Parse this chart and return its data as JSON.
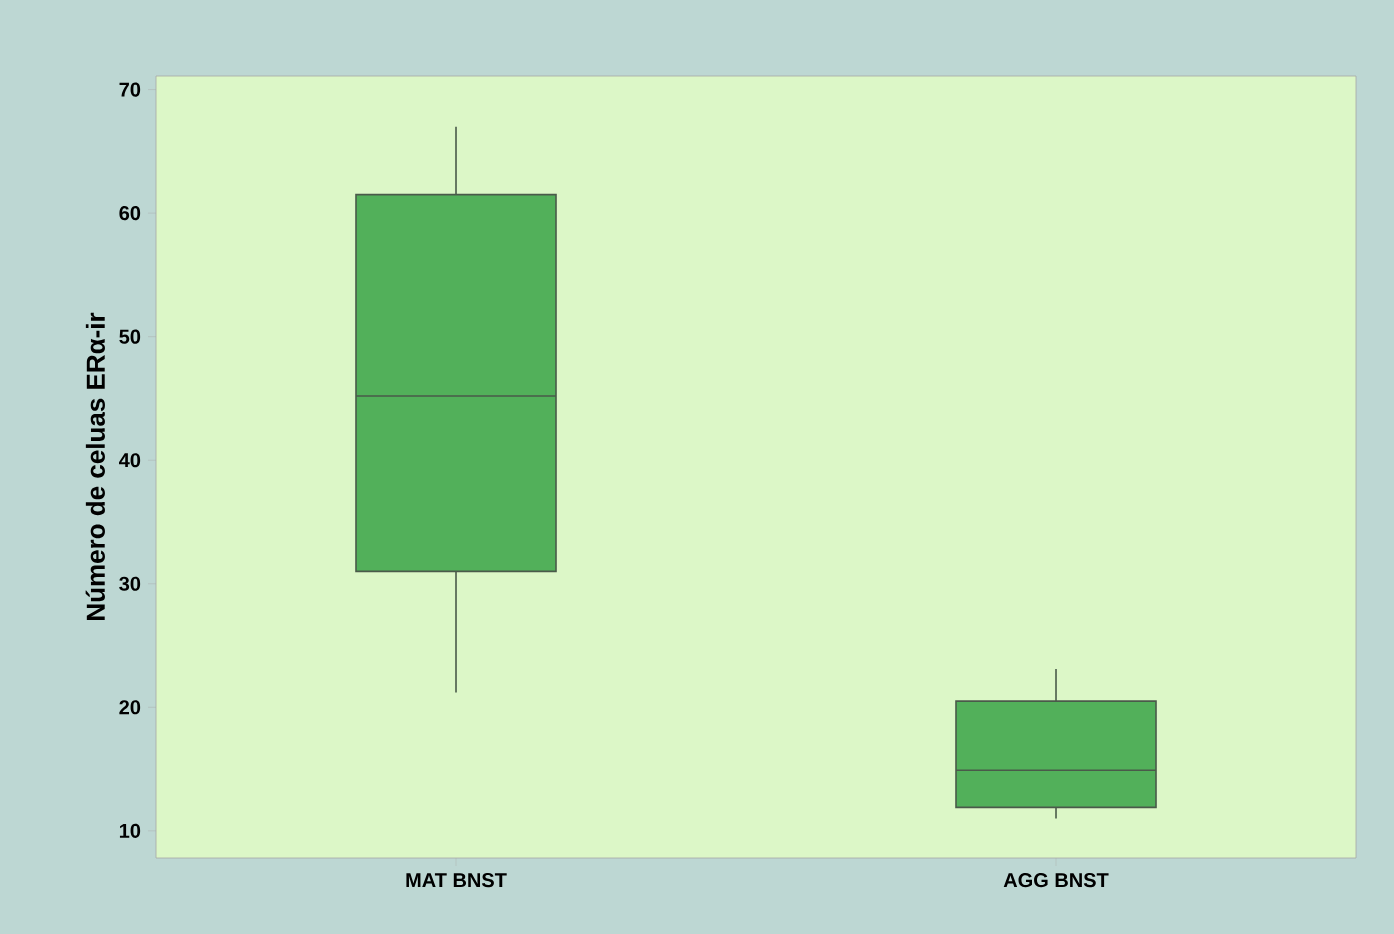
{
  "chart_data": {
    "type": "box",
    "ylabel": "Número de celuas ERα-ir",
    "categories": [
      "MAT BNST",
      "AGG BNST"
    ],
    "boxes": [
      {
        "low": 21.2,
        "q1": 31.0,
        "median": 45.2,
        "q3": 61.5,
        "high": 67.0
      },
      {
        "low": 11.0,
        "q1": 11.9,
        "median": 14.9,
        "q3": 20.5,
        "high": 23.1
      }
    ],
    "color": "#52b05a",
    "ylim": [
      7.8,
      71.1
    ],
    "yticks": [
      10,
      20,
      30,
      40,
      50,
      60,
      70
    ],
    "grid": false
  }
}
